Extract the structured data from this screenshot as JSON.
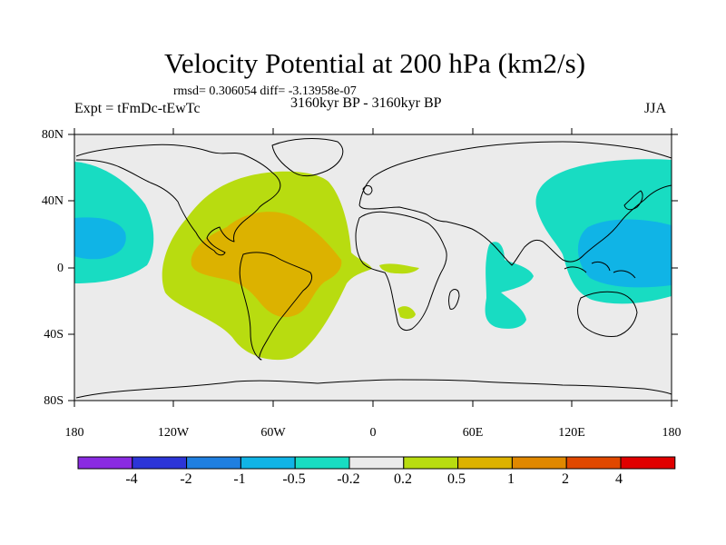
{
  "title": "Velocity Potential at 200 hPa (km2/s)",
  "stats_line": "rmsd= 0.306054  diff= -3.13958e-07",
  "expt_label": "Expt = tFmDc-tEwTc",
  "period_label": "3160kyr BP - 3160kyr BP",
  "season_label": "JJA",
  "y_ticks": [
    {
      "label": "80N",
      "lat": 80
    },
    {
      "label": "40N",
      "lat": 40
    },
    {
      "label": "0",
      "lat": 0
    },
    {
      "label": "40S",
      "lat": -40
    },
    {
      "label": "80S",
      "lat": -80
    }
  ],
  "x_ticks": [
    {
      "label": "180",
      "lon": -180
    },
    {
      "label": "120W",
      "lon": -120
    },
    {
      "label": "60W",
      "lon": -60
    },
    {
      "label": "0",
      "lon": 0
    },
    {
      "label": "60E",
      "lon": 60
    },
    {
      "label": "120E",
      "lon": 120
    },
    {
      "label": "180",
      "lon": 180
    }
  ],
  "colorbar": {
    "colors": [
      "#8a2be2",
      "#2c35d8",
      "#1f7fe0",
      "#10b4e6",
      "#18dcc2",
      "#ebebeb",
      "#b8dc10",
      "#dcb200",
      "#e08800",
      "#e04800",
      "#e00000"
    ],
    "labels": [
      "-4",
      "-2",
      "-1",
      "-0.5",
      "-0.2",
      "0.2",
      "0.5",
      "1",
      "2",
      "4"
    ]
  },
  "colors": {
    "background": "#ebebeb",
    "positive_weak": "#b8dc10",
    "positive_mid": "#dcb200",
    "negative_weak": "#18dcc2",
    "negative_mid": "#10b4e6"
  }
}
